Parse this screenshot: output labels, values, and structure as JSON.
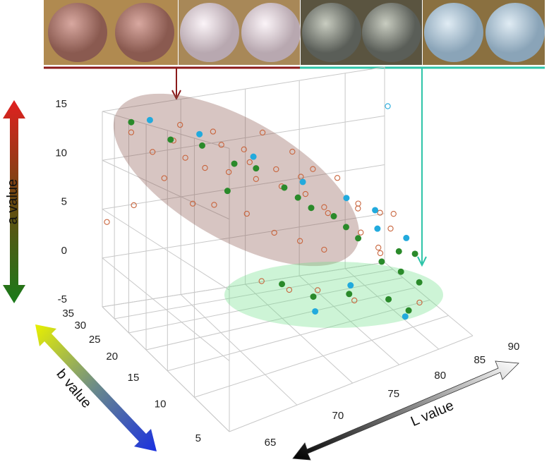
{
  "chart_data": {
    "type": "scatter3d",
    "a_label": "a value",
    "b_label": "b value",
    "L_label": "L value",
    "alim": [
      -5,
      15
    ],
    "blim": [
      5,
      35
    ],
    "Llim": [
      65,
      90
    ],
    "aticks": [
      -5,
      0,
      5,
      10,
      15
    ],
    "bticks": [
      5,
      10,
      15,
      20,
      25,
      30,
      35
    ],
    "Lticks": [
      65,
      70,
      75,
      80,
      85,
      90
    ],
    "series": [
      {
        "color": "#c8643c",
        "marker": "open",
        "L": [
          66,
          67,
          68,
          69,
          70,
          71,
          72,
          73,
          74,
          75,
          76,
          77,
          78,
          79,
          80,
          81,
          82,
          83,
          84,
          85,
          70,
          72,
          74,
          76,
          78,
          68,
          67,
          69,
          71,
          73,
          75,
          77,
          79,
          81,
          83,
          86,
          88,
          74,
          77,
          80,
          72,
          66,
          65,
          87,
          89
        ],
        "a": [
          13,
          11,
          12,
          10,
          9,
          11,
          8,
          9,
          7,
          8,
          6,
          7,
          5,
          4,
          3,
          2,
          4,
          1,
          0,
          -1,
          6,
          5,
          3,
          2,
          1,
          7,
          9,
          13,
          12,
          10,
          11,
          9,
          7,
          6,
          3,
          2,
          0,
          -1,
          -2,
          -3,
          0,
          6,
          4,
          -4,
          1
        ],
        "b": [
          30,
          28,
          26,
          27,
          25,
          24,
          26,
          23,
          25,
          22,
          24,
          21,
          23,
          20,
          22,
          19,
          18,
          20,
          17,
          19,
          22,
          20,
          19,
          18,
          17,
          20,
          24,
          29,
          27,
          25,
          27,
          24,
          24,
          22,
          21,
          22,
          24,
          15,
          16,
          14,
          16,
          29,
          33,
          12,
          26
        ]
      },
      {
        "color": "#2a8a2a",
        "marker": "filled",
        "L": [
          66,
          70,
          72,
          74,
          76,
          78,
          80,
          82,
          84,
          86,
          88,
          75,
          79,
          83,
          85,
          73,
          77,
          81,
          87,
          71,
          90,
          68
        ],
        "a": [
          14,
          11,
          9,
          8,
          6,
          4,
          3,
          1,
          -1,
          -2,
          -3,
          -1,
          -2,
          -3,
          -4,
          0,
          5,
          2,
          -1,
          7,
          -2,
          12
        ],
        "b": [
          30,
          26,
          24,
          25,
          23,
          21,
          20,
          18,
          16,
          15,
          14,
          12,
          13,
          12,
          11,
          14,
          22,
          19,
          18,
          22,
          20,
          27
        ]
      },
      {
        "color": "#22aadd",
        "marker": "filled",
        "L": [
          67,
          70,
          74,
          78,
          82,
          85,
          88,
          76,
          80,
          84,
          86
        ],
        "a": [
          14,
          12,
          9,
          6,
          4,
          1,
          0,
          -3,
          -2,
          -4,
          2
        ],
        "b": [
          29,
          27,
          26,
          24,
          22,
          20,
          18,
          14,
          15,
          10,
          24
        ]
      },
      {
        "color": "#22aadd",
        "marker": "open",
        "L": [
          90
        ],
        "a": [
          11
        ],
        "b": [
          33
        ]
      }
    ]
  }
}
